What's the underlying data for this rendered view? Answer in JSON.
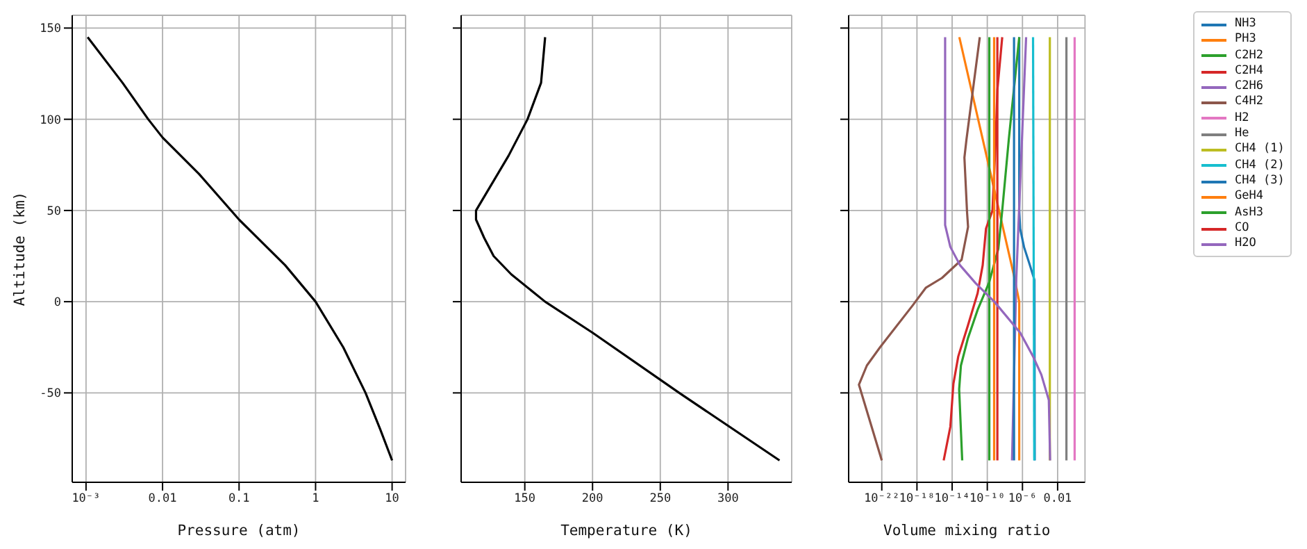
{
  "chart_data": [
    {
      "type": "line",
      "xlabel": "Pressure (atm)",
      "ylabel": "Altitude (km)",
      "log": "x",
      "grid": true,
      "color": "#000000",
      "x": [
        0.00105,
        0.003,
        0.0065,
        0.01,
        0.03,
        0.1,
        0.4,
        1,
        2.3,
        4.5,
        7,
        10
      ],
      "values": [
        145,
        120,
        100,
        90,
        70,
        45,
        20,
        0,
        -25,
        -50,
        -70,
        -87
      ],
      "xlim": [
        0.00066,
        15
      ],
      "xticks": [
        {
          "value": 0.001,
          "label": "10⁻³"
        },
        0.01,
        0.1,
        1,
        10
      ],
      "ylim": [
        -99,
        157
      ],
      "yticks": [
        -50,
        0,
        50,
        100,
        150
      ]
    },
    {
      "type": "line",
      "xlabel": "Temperature (K)",
      "grid": true,
      "color": "#000000",
      "tick_labels": "x",
      "x": [
        165,
        162,
        152,
        138,
        122,
        114,
        114,
        120,
        127,
        140,
        165,
        200,
        264,
        338
      ],
      "values": [
        145,
        120,
        100,
        80,
        60,
        50,
        45,
        35,
        25,
        15,
        0,
        -17,
        -50,
        -87
      ],
      "xlim": [
        103,
        347
      ],
      "xticks": [
        150,
        200,
        250,
        300
      ],
      "ylim": [
        -99,
        157
      ],
      "yticks": [
        -50,
        0,
        50,
        100,
        150
      ]
    },
    {
      "type": "line",
      "xlabel": "Volume mixing ratio",
      "log": "x",
      "grid": true,
      "legend": "right",
      "tick_labels": "x",
      "xlim": [
        1.7e-26,
        13
      ],
      "xticks": [
        {
          "value": 1e-22,
          "label": "10⁻²²"
        },
        {
          "value": 1e-18,
          "label": "10⁻¹⁸"
        },
        {
          "value": 1e-14,
          "label": "10⁻¹⁴"
        },
        {
          "value": 1e-10,
          "label": "10⁻¹⁰"
        },
        {
          "value": 1e-06,
          "label": "10⁻⁶"
        },
        0.01
      ],
      "ylim": [
        -99,
        157
      ],
      "yticks": [
        -50,
        0,
        50,
        100,
        150
      ],
      "series": [
        {
          "name": "NH3",
          "color": "#1f77b4",
          "x": [
            4.3e-07,
            4.3e-07,
            5.5e-07,
            1.5e-06,
            7e-06,
            1.7e-05,
            2.3e-05,
            2.5e-05
          ],
          "values": [
            145,
            50,
            40,
            30,
            20,
            14,
            12,
            -87
          ]
        },
        {
          "name": "PH3",
          "color": "#ff7f0e",
          "x": [
            6.6e-14,
            1e-07,
            4.3e-07,
            4.3e-07
          ],
          "values": [
            145,
            15,
            0,
            -87
          ]
        },
        {
          "name": "C2H2",
          "color": "#2ca02c",
          "x": [
            4.3e-07,
            2.8e-08,
            5e-09,
            1.8e-09,
            1.6e-10,
            7.9e-12,
            6.3e-13,
            1e-13,
            6.3e-14,
            1.4e-13
          ],
          "values": [
            145,
            89,
            50,
            29,
            10.5,
            -4.5,
            -20,
            -35,
            -48,
            -87
          ]
        },
        {
          "name": "C2H4",
          "color": "#d62728",
          "x": [
            5e-09,
            1.4e-09,
            9.1e-10,
            3.9e-10,
            7.1e-11,
            3e-11,
            7.9e-12,
            6.3e-13,
            5e-14,
            1.4e-14,
            6.3e-15,
            1.1e-15
          ],
          "values": [
            145,
            116,
            89,
            50,
            40,
            20,
            4.6,
            -13,
            -30,
            -45,
            -68.5,
            -87
          ]
        },
        {
          "name": "C2H6",
          "color": "#9467bd",
          "x": [
            2.6e-06,
            2e-07,
            6.5e-08
          ],
          "values": [
            145,
            13,
            -87
          ]
        },
        {
          "name": "C4H2",
          "color": "#8c564b",
          "x": [
            1.4e-11,
            4.3e-13,
            2.5e-13,
            5e-13,
            6.5e-13,
            1.2e-13,
            7e-16,
            1e-17,
            3.3e-19,
            6.3e-23,
            2e-24,
            2.5e-25,
            1e-22
          ],
          "values": [
            145,
            89,
            79,
            49,
            41,
            23,
            13,
            7.6,
            -2,
            -25,
            -35,
            -45.5,
            -87
          ]
        },
        {
          "name": "H2",
          "color": "#e377c2",
          "x": [
            0.86,
            0.86
          ],
          "values": [
            145,
            -87
          ]
        },
        {
          "name": "He",
          "color": "#7f7f7f",
          "x": [
            0.1,
            0.1
          ],
          "values": [
            145,
            -87
          ]
        },
        {
          "name": "CH4 (1)",
          "color": "#bcbd22",
          "x": [
            0.0013,
            0.0013
          ],
          "values": [
            145,
            -87
          ]
        },
        {
          "name": "CH4 (2)",
          "color": "#17becf",
          "x": [
            1.6e-05,
            2.2e-05
          ],
          "values": [
            145,
            -87
          ]
        },
        {
          "name": "CH4 (3)",
          "color": "#1f77b4",
          "x": [
            1.1e-07,
            1.1e-07
          ],
          "values": [
            145,
            -87
          ]
        },
        {
          "name": "GeH4",
          "color": "#ff7f0e",
          "x": [
            6e-10,
            6e-10
          ],
          "values": [
            145,
            -87
          ]
        },
        {
          "name": "AsH3",
          "color": "#2ca02c",
          "x": [
            1.7e-10,
            1.7e-10
          ],
          "values": [
            145,
            -87
          ]
        },
        {
          "name": "CO",
          "color": "#d62728",
          "x": [
            1.4e-09,
            1.4e-09
          ],
          "values": [
            145,
            -87
          ]
        },
        {
          "name": "H2O",
          "color": "#9467bd",
          "x": [
            1.6e-15,
            1.6e-15,
            6.3e-15,
            7.9e-14,
            5e-12,
            6.3e-10,
            5.5e-07,
            1.6e-05,
            0.00014,
            0.001,
            0.0014
          ],
          "values": [
            145,
            42,
            30,
            20,
            10,
            0,
            -17,
            -30,
            -40,
            -54,
            -87
          ]
        }
      ]
    }
  ]
}
